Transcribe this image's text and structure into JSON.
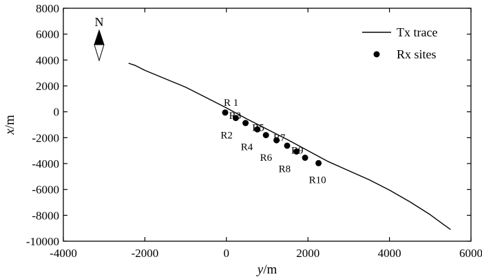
{
  "chart_data": {
    "type": "scatter",
    "xlabel_italic": "y",
    "xlabel_unit": "/m",
    "ylabel_italic": "x",
    "ylabel_unit": "/m",
    "xlim": [
      -4000,
      6000
    ],
    "ylim": [
      -10000,
      8000
    ],
    "xticks": [
      -4000,
      -2000,
      0,
      2000,
      4000,
      6000
    ],
    "yticks": [
      -10000,
      -8000,
      -6000,
      -4000,
      -2000,
      0,
      2000,
      4000,
      6000,
      8000
    ],
    "north_arrow_label": "N",
    "legend_position": "top-right",
    "legend": [
      {
        "label": "Tx trace",
        "marker": "line"
      },
      {
        "label": "Rx sites",
        "marker": "dot"
      }
    ],
    "series": [
      {
        "name": "Tx trace",
        "type": "line",
        "x": [
          -2400,
          -2250,
          -2000,
          -1500,
          -1000,
          -500,
          0,
          500,
          1000,
          1500,
          2000,
          2500,
          3000,
          3500,
          4000,
          4500,
          5000,
          5300,
          5500
        ],
        "y": [
          3750,
          3600,
          3200,
          2550,
          1900,
          1100,
          300,
          -550,
          -1350,
          -2150,
          -3000,
          -3850,
          -4550,
          -5250,
          -6050,
          -6950,
          -7950,
          -8650,
          -9100
        ]
      },
      {
        "name": "Rx sites",
        "type": "scatter",
        "labels": [
          "R 1",
          "R2",
          "R3",
          "R4",
          "R5",
          "R6",
          "R7",
          "R8",
          "R9",
          "R10"
        ],
        "x": [
          -30,
          230,
          470,
          760,
          970,
          1230,
          1490,
          1720,
          1930,
          2260
        ],
        "y": [
          -60,
          -480,
          -870,
          -1360,
          -1800,
          -2200,
          -2620,
          -3070,
          -3550,
          -3970
        ]
      }
    ]
  }
}
